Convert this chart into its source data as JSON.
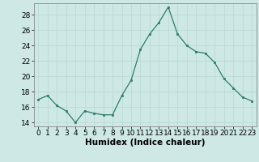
{
  "x": [
    0,
    1,
    2,
    3,
    4,
    5,
    6,
    7,
    8,
    9,
    10,
    11,
    12,
    13,
    14,
    15,
    16,
    17,
    18,
    19,
    20,
    21,
    22,
    23
  ],
  "y": [
    17.0,
    17.5,
    16.2,
    15.5,
    14.0,
    15.5,
    15.2,
    15.0,
    15.0,
    17.5,
    19.5,
    23.5,
    25.5,
    27.0,
    29.0,
    25.5,
    24.0,
    23.2,
    23.0,
    21.8,
    19.7,
    18.5,
    17.3,
    16.8
  ],
  "xlabel": "Humidex (Indice chaleur)",
  "ylim": [
    13.5,
    29.5
  ],
  "xlim": [
    -0.5,
    23.5
  ],
  "yticks": [
    14,
    16,
    18,
    20,
    22,
    24,
    26,
    28
  ],
  "xticks": [
    0,
    1,
    2,
    3,
    4,
    5,
    6,
    7,
    8,
    9,
    10,
    11,
    12,
    13,
    14,
    15,
    16,
    17,
    18,
    19,
    20,
    21,
    22,
    23
  ],
  "line_color": "#2e7b6b",
  "marker_color": "#2e7b6b",
  "bg_color": "#cde8e5",
  "grid_color": "#b8d8d4",
  "axis_color": "#888888",
  "tick_label_fontsize": 6.5,
  "xlabel_fontsize": 7.5
}
